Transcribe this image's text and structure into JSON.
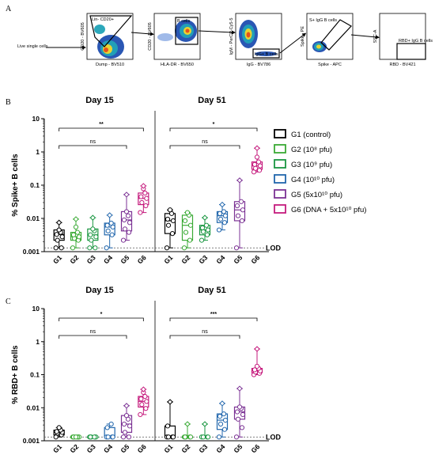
{
  "panels": {
    "a": "A",
    "b": "B",
    "c": "C"
  },
  "gating": {
    "live_label": "Live single cells",
    "plots": [
      {
        "y_label": "CD20 - BV605",
        "x_label": "Dump - BV510",
        "gate_label": "Lin- CD20+"
      },
      {
        "y_label": "CD20 - BV605",
        "x_label": "HLA-DR - BV650",
        "gate_label": "B cells"
      },
      {
        "y_label": "IgM - PerCP-Cy5-5",
        "x_label": "IgG - BV786",
        "gate_label": "IgG+ B cells"
      },
      {
        "y_label": "Spike - PE",
        "x_label": "Spike - APC",
        "gate_label": "S+ IgG B cells"
      },
      {
        "y_label": "SSC-A",
        "x_label": "RBD - BV421",
        "gate_label": "RBD+ IgG B cells"
      }
    ]
  },
  "legend": [
    {
      "key": "G1",
      "label": "G1 (control)",
      "color": "#000000"
    },
    {
      "key": "G2",
      "label": "G2 (10⁸ pfu)",
      "color": "#3aaa35"
    },
    {
      "key": "G3",
      "label": "G3 (10⁹ pfu)",
      "color": "#1a9641"
    },
    {
      "key": "G4",
      "label": "G4 (10¹⁰ pfu)",
      "color": "#2166ac"
    },
    {
      "key": "G5",
      "label": "G5 (5x10¹⁰ pfu)",
      "color": "#7b3294"
    },
    {
      "key": "G6",
      "label": "G6 (DNA + 5x10¹⁰ pfu)",
      "color": "#c51b7d"
    }
  ],
  "chart_data": [
    {
      "type": "box",
      "panel": "B",
      "ylabel": "% Spike+ B cells",
      "yscale": "log",
      "ylim": [
        0.001,
        10
      ],
      "yticks": [
        "10",
        "1",
        "0.1",
        "0.01",
        "0.001"
      ],
      "lod_label": "LOD",
      "lod": 0.0013,
      "categories": [
        "G1",
        "G2",
        "G3",
        "G4",
        "G5",
        "G6"
      ],
      "days": [
        {
          "title": "Day 15",
          "significance": [
            {
              "from": "G1",
              "to": "G6",
              "label": "**"
            },
            {
              "from": "G1",
              "to": "G5",
              "label": "ns"
            }
          ],
          "groups": [
            {
              "min": 0.0013,
              "q1": 0.0022,
              "median": 0.0033,
              "q3": 0.0045,
              "max": 0.0075,
              "points": [
                0.0013,
                0.0013,
                0.0022,
                0.0028,
                0.0033,
                0.0038,
                0.0045,
                0.0075
              ]
            },
            {
              "min": 0.0013,
              "q1": 0.0022,
              "median": 0.0028,
              "q3": 0.0038,
              "max": 0.0095,
              "points": [
                0.0013,
                0.0022,
                0.0025,
                0.0028,
                0.0032,
                0.0038,
                0.0055,
                0.0095
              ]
            },
            {
              "min": 0.0013,
              "q1": 0.0022,
              "median": 0.0032,
              "q3": 0.0048,
              "max": 0.0105,
              "points": [
                0.0013,
                0.0013,
                0.0022,
                0.0028,
                0.0032,
                0.0042,
                0.0048,
                0.0105
              ]
            },
            {
              "min": 0.0013,
              "q1": 0.0032,
              "median": 0.0055,
              "q3": 0.0072,
              "max": 0.0125,
              "points": [
                0.0013,
                0.0032,
                0.0042,
                0.0055,
                0.0062,
                0.0072,
                0.0125
              ]
            },
            {
              "min": 0.0022,
              "q1": 0.0042,
              "median": 0.009,
              "q3": 0.016,
              "max": 0.052,
              "points": [
                0.0022,
                0.0038,
                0.0048,
                0.0075,
                0.009,
                0.012,
                0.016,
                0.052
              ]
            },
            {
              "min": 0.015,
              "q1": 0.026,
              "median": 0.04,
              "q3": 0.058,
              "max": 0.095,
              "points": [
                0.015,
                0.024,
                0.03,
                0.04,
                0.045,
                0.058,
                0.078,
                0.095
              ]
            }
          ]
        },
        {
          "title": "Day 51",
          "significance": [
            {
              "from": "G1",
              "to": "G6",
              "label": "*"
            },
            {
              "from": "G1",
              "to": "G5",
              "label": "ns"
            }
          ],
          "groups": [
            {
              "min": 0.0013,
              "q1": 0.0035,
              "median": 0.0085,
              "q3": 0.014,
              "max": 0.018,
              "points": [
                0.0013,
                0.0035,
                0.0062,
                0.0085,
                0.0095,
                0.014,
                0.018
              ]
            },
            {
              "min": 0.0013,
              "q1": 0.0022,
              "median": 0.0062,
              "q3": 0.0125,
              "max": 0.015,
              "points": [
                0.0013,
                0.0022,
                0.0038,
                0.0062,
                0.0085,
                0.0125,
                0.015
              ]
            },
            {
              "min": 0.0022,
              "q1": 0.0032,
              "median": 0.0045,
              "q3": 0.0062,
              "max": 0.0105,
              "points": [
                0.0022,
                0.0032,
                0.004,
                0.0045,
                0.0052,
                0.0062,
                0.0105
              ]
            },
            {
              "min": 0.0045,
              "q1": 0.0075,
              "median": 0.012,
              "q3": 0.016,
              "max": 0.026,
              "points": [
                0.0045,
                0.0075,
                0.0095,
                0.012,
                0.014,
                0.016,
                0.026
              ]
            },
            {
              "min": 0.0013,
              "q1": 0.0085,
              "median": 0.018,
              "q3": 0.032,
              "max": 0.14,
              "points": [
                0.0013,
                0.0085,
                0.012,
                0.018,
                0.024,
                0.032,
                0.14
              ]
            },
            {
              "min": 0.25,
              "q1": 0.3,
              "median": 0.38,
              "q3": 0.5,
              "max": 1.3,
              "points": [
                0.25,
                0.28,
                0.32,
                0.38,
                0.42,
                0.5,
                0.7,
                1.3
              ]
            }
          ]
        }
      ]
    },
    {
      "type": "box",
      "panel": "C",
      "ylabel": "% RBD+ B cells",
      "yscale": "log",
      "ylim": [
        0.001,
        10
      ],
      "yticks": [
        "10",
        "1",
        "0.1",
        "0.01",
        "0.001"
      ],
      "lod_label": "LOD",
      "lod": 0.0013,
      "categories": [
        "G1",
        "G2",
        "G3",
        "G4",
        "G5",
        "G6"
      ],
      "days": [
        {
          "title": "Day 15",
          "significance": [
            {
              "from": "G1",
              "to": "G6",
              "label": "*"
            },
            {
              "from": "G1",
              "to": "G5",
              "label": "ns"
            }
          ],
          "groups": [
            {
              "min": 0.0013,
              "q1": 0.0015,
              "median": 0.0018,
              "q3": 0.0021,
              "max": 0.0025,
              "points": [
                0.0013,
                0.0015,
                0.0017,
                0.0018,
                0.0019,
                0.0021,
                0.0025
              ]
            },
            {
              "min": 0.0013,
              "q1": 0.0013,
              "median": 0.0013,
              "q3": 0.0013,
              "max": 0.0013,
              "points": [
                0.0013,
                0.0013,
                0.0013,
                0.0013,
                0.0013,
                0.0013,
                0.0013
              ]
            },
            {
              "min": 0.0013,
              "q1": 0.0013,
              "median": 0.0013,
              "q3": 0.0013,
              "max": 0.0013,
              "points": [
                0.0013,
                0.0013,
                0.0013,
                0.0013,
                0.0013,
                0.0013
              ]
            },
            {
              "min": 0.0013,
              "q1": 0.0013,
              "median": 0.0013,
              "q3": 0.0025,
              "max": 0.0032,
              "points": [
                0.0013,
                0.0013,
                0.0013,
                0.0013,
                0.0025,
                0.0032
              ]
            },
            {
              "min": 0.0013,
              "q1": 0.0018,
              "median": 0.0032,
              "q3": 0.0058,
              "max": 0.0115,
              "points": [
                0.0013,
                0.0013,
                0.0018,
                0.0028,
                0.0032,
                0.0045,
                0.0058,
                0.0115
              ]
            },
            {
              "min": 0.0062,
              "q1": 0.0105,
              "median": 0.0155,
              "q3": 0.022,
              "max": 0.036,
              "points": [
                0.0062,
                0.0095,
                0.0125,
                0.0155,
                0.0185,
                0.022,
                0.029,
                0.036
              ]
            }
          ]
        },
        {
          "title": "Day 51",
          "significance": [
            {
              "from": "G1",
              "to": "G6",
              "label": "***"
            },
            {
              "from": "G1",
              "to": "G5",
              "label": "ns"
            }
          ],
          "groups": [
            {
              "min": 0.0013,
              "q1": 0.0013,
              "median": 0.0013,
              "q3": 0.0028,
              "max": 0.015,
              "points": [
                0.0013,
                0.0013,
                0.0013,
                0.0013,
                0.0028,
                0.015
              ]
            },
            {
              "min": 0.0013,
              "q1": 0.0013,
              "median": 0.0013,
              "q3": 0.0013,
              "max": 0.0032,
              "points": [
                0.0013,
                0.0013,
                0.0013,
                0.0013,
                0.0013,
                0.0032
              ]
            },
            {
              "min": 0.0013,
              "q1": 0.0013,
              "median": 0.0013,
              "q3": 0.0013,
              "max": 0.0032,
              "points": [
                0.0013,
                0.0013,
                0.0013,
                0.0013,
                0.0032
              ]
            },
            {
              "min": 0.0013,
              "q1": 0.0022,
              "median": 0.0042,
              "q3": 0.0065,
              "max": 0.0135,
              "points": [
                0.0013,
                0.0022,
                0.0032,
                0.0042,
                0.0055,
                0.0065,
                0.0135
              ]
            },
            {
              "min": 0.0013,
              "q1": 0.0045,
              "median": 0.0075,
              "q3": 0.0105,
              "max": 0.038,
              "points": [
                0.0013,
                0.0025,
                0.0045,
                0.0062,
                0.0075,
                0.0095,
                0.0105,
                0.038
              ]
            },
            {
              "min": 0.1,
              "q1": 0.115,
              "median": 0.13,
              "q3": 0.155,
              "max": 0.6,
              "points": [
                0.1,
                0.11,
                0.12,
                0.13,
                0.14,
                0.155,
                0.18,
                0.6
              ]
            }
          ]
        }
      ]
    }
  ]
}
